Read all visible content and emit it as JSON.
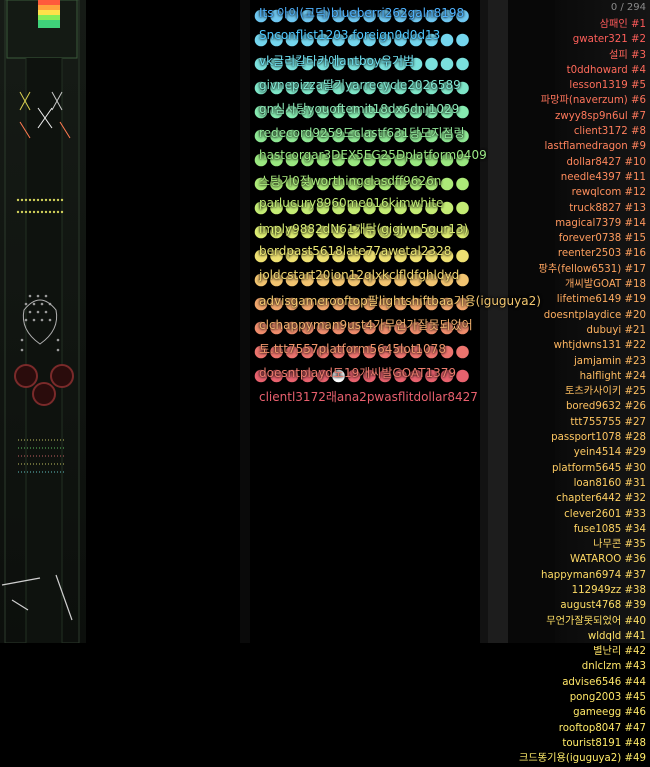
{
  "counter": "0 / 294",
  "board": {
    "rows": 16,
    "cols": 14,
    "row_colors": [
      "#6ec7f0",
      "#74d6ee",
      "#7ae0dc",
      "#7ee6c8",
      "#86eab0",
      "#8ee894",
      "#9ae880",
      "#acea78",
      "#c4ec74",
      "#dcec72",
      "#eee072",
      "#f2c470",
      "#f0a66c",
      "#ee8c6c",
      "#ec746e",
      "#e8626e"
    ],
    "highlight_color": "#ffffff",
    "labels": [
      {
        "text": "Its 아이(고딕)blueberri262galn8198",
        "color": "#4fb3ff"
      },
      {
        "text": "Snconflict1203.foreign0d0d13",
        "color": "#4fc9ff"
      },
      {
        "text": "vk글리칼타카에antboy우거범",
        "color": "#6fe0f0"
      },
      {
        "text": "givnepizza딸기yarrecycle2026589",
        "color": "#82e8d4"
      },
      {
        "text": "gn심사탕youoftemit18dx6dnj1029",
        "color": "#8eeab8"
      },
      {
        "text": "redecord9259드clastf631당모지점링",
        "color": "#94ea9c"
      },
      {
        "text": "hastcorgar3DEX5EG25Dplatform0409",
        "color": "#9cea86"
      },
      {
        "text": "스팅기0잦worthingclasdff9626n",
        "color": "#aaea7c"
      },
      {
        "text": "parlucury8960me016kimwhite",
        "color": "#c2ec76"
      },
      {
        "text": "imply9882dN61개닦(gigjwn5gur13)",
        "color": "#d8ec74"
      },
      {
        "text": "berdpast5618late77awetal2328",
        "color": "#eae674"
      },
      {
        "text": "joldcstart20ion12qlxkclfldfghldyd",
        "color": "#f2d872"
      },
      {
        "text": "advisgamerooftop팔lightshiftbaa기용(iguguya2)",
        "color": "#f4c870"
      },
      {
        "text": "clchappyman9ust4가무언가잘못되었어",
        "color": "#f0b06e"
      },
      {
        "text": "토.ttt7557platform5645lot1078",
        "color": "#ee966c"
      },
      {
        "text": "doesntplayd도19개씨발GOAT1379",
        "color": "#ec7c6e"
      },
      {
        "text": "clientl3172래ana2pwasflitdollar8427",
        "color": "#e8606e"
      }
    ]
  },
  "ranking": [
    {
      "text": "삼패인 #1",
      "color": "#ff5a5a"
    },
    {
      "text": "gwater321 #2",
      "color": "#ff5f5a"
    },
    {
      "text": "설피 #3",
      "color": "#ff655a"
    },
    {
      "text": "t0ddhoward #4",
      "color": "#ff6a5a"
    },
    {
      "text": "lesson1319 #5",
      "color": "#ff6f5b"
    },
    {
      "text": "파망파(naverzum) #6",
      "color": "#ff745b"
    },
    {
      "text": "zwyy8sp9n6ul #7",
      "color": "#ff795b"
    },
    {
      "text": "client3172 #8",
      "color": "#ff7e5c"
    },
    {
      "text": "lastflamedragon #9",
      "color": "#ff835c"
    },
    {
      "text": "dollar8427 #10",
      "color": "#ff875c"
    },
    {
      "text": "needle4397 #11",
      "color": "#ff8c5d"
    },
    {
      "text": "rewqlcom #12",
      "color": "#ff905d"
    },
    {
      "text": "truck8827 #13",
      "color": "#ff945d"
    },
    {
      "text": "magical7379 #14",
      "color": "#ff985e"
    },
    {
      "text": "forever0738 #15",
      "color": "#ff9c5e"
    },
    {
      "text": "reenter2503 #16",
      "color": "#ffa05e"
    },
    {
      "text": "팡추(fellow6531) #17",
      "color": "#ffa45f"
    },
    {
      "text": "개씨발GOAT #18",
      "color": "#ffa85f"
    },
    {
      "text": "lifetime6149 #19",
      "color": "#ffab5f"
    },
    {
      "text": "doesntplaydice #20",
      "color": "#ffaf60"
    },
    {
      "text": "dubuyi #21",
      "color": "#ffb260"
    },
    {
      "text": "whtjdwns131 #22",
      "color": "#ffb660"
    },
    {
      "text": "jamjamin #23",
      "color": "#ffb961"
    },
    {
      "text": "halflight #24",
      "color": "#ffbc61"
    },
    {
      "text": "토츠카사이키 #25",
      "color": "#ffbf61"
    },
    {
      "text": "bored9632 #26",
      "color": "#ffc262"
    },
    {
      "text": "ttt755755 #27",
      "color": "#ffc562"
    },
    {
      "text": "passport1078 #28",
      "color": "#ffc762"
    },
    {
      "text": "yein4514 #29",
      "color": "#ffca63"
    },
    {
      "text": "platform5645 #30",
      "color": "#ffcc63"
    },
    {
      "text": "loan8160 #31",
      "color": "#ffcf63"
    },
    {
      "text": "chapter6442 #32",
      "color": "#ffd164"
    },
    {
      "text": "clever2601 #33",
      "color": "#ffd364"
    },
    {
      "text": "fuse1085 #34",
      "color": "#ffd564"
    },
    {
      "text": "나무콘 #35",
      "color": "#ffd765"
    },
    {
      "text": "WATAROO #36",
      "color": "#ffd965"
    },
    {
      "text": "happyman6974 #37",
      "color": "#ffdb65"
    },
    {
      "text": "112949zz #38",
      "color": "#ffdd66"
    },
    {
      "text": "august4768 #39",
      "color": "#ffdf66"
    },
    {
      "text": "무언가잘못되었어 #40",
      "color": "#ffe066"
    },
    {
      "text": "wldqld #41",
      "color": "#ffe267"
    },
    {
      "text": "별난리 #42",
      "color": "#ffe367"
    },
    {
      "text": "dnlclzm #43",
      "color": "#ffe567"
    },
    {
      "text": "advise6546 #44",
      "color": "#ffe668"
    },
    {
      "text": "pong2003 #45",
      "color": "#ffe768"
    },
    {
      "text": "gameegg #46",
      "color": "#ffe868"
    },
    {
      "text": "rooftop8047 #47",
      "color": "#ffea69"
    },
    {
      "text": "tourist8191 #48",
      "color": "#ffeb69"
    },
    {
      "text": "크드똥기용(iguguya2) #49",
      "color": "#ffec69"
    }
  ]
}
